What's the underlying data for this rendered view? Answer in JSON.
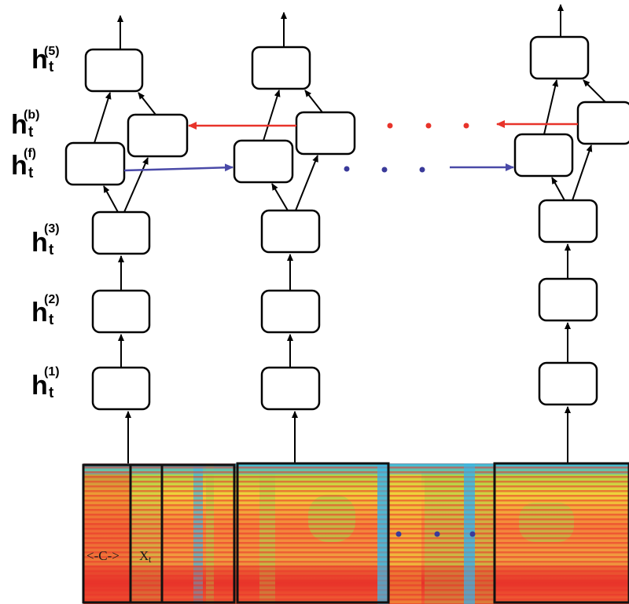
{
  "layer_labels": [
    {
      "id": "h5",
      "base": "h",
      "sup": "(5)",
      "sub": "t"
    },
    {
      "id": "hb",
      "base": "h",
      "sup": "(b)",
      "sub": "t"
    },
    {
      "id": "hf",
      "base": "h",
      "sup": "(f)",
      "sub": "t"
    },
    {
      "id": "h3",
      "base": "h",
      "sup": "(3)",
      "sub": "t"
    },
    {
      "id": "h2",
      "base": "h",
      "sup": "(2)",
      "sub": "t"
    },
    {
      "id": "h1",
      "base": "h",
      "sup": "(1)",
      "sub": "t"
    }
  ],
  "columns": [
    "first",
    "second",
    "last"
  ],
  "spectrogram": {
    "context_label": "<-C->",
    "input_label": "X",
    "input_sub": "t"
  },
  "colors": {
    "node_stroke": "#000000",
    "node_fill": "#ffffff",
    "backward_arrow": "#e8332a",
    "forward_arrow": "#4a4aa8",
    "red_dot": "#e8332a",
    "blue_dot": "#3a3a9a",
    "spec_blue": "#3fb8e0",
    "spec_green": "#a8d44a",
    "spec_yellow": "#f0d23a",
    "spec_orange": "#f5803a",
    "spec_red": "#e8332a"
  }
}
